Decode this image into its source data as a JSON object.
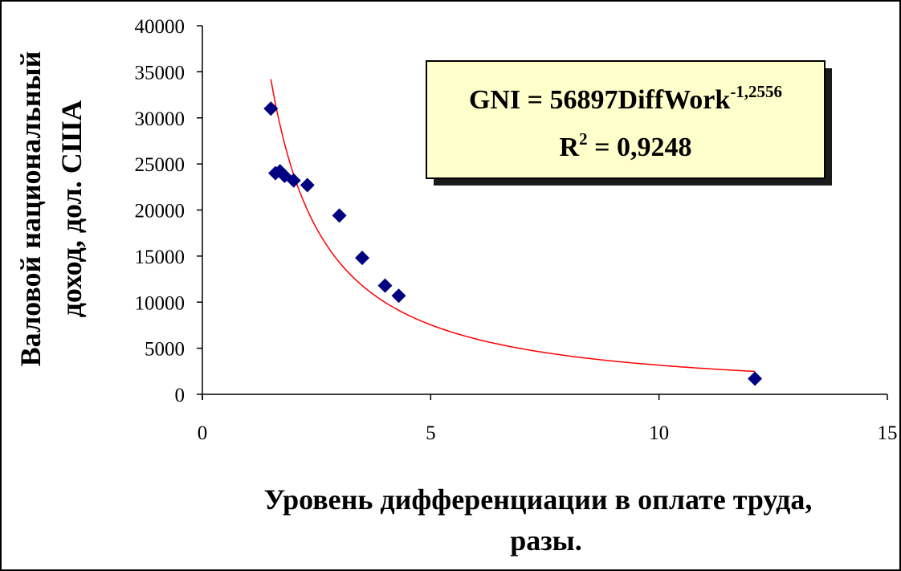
{
  "chart_data": {
    "type": "scatter",
    "xlabel_lines": [
      "Уровень дифференциации в оплате труда,",
      "разы."
    ],
    "ylabel_lines": [
      "Валовой национальный",
      "доход, дол. США"
    ],
    "xlim": [
      0,
      15
    ],
    "ylim": [
      0,
      40000
    ],
    "x_ticks": [
      0,
      5,
      10,
      15
    ],
    "y_ticks": [
      0,
      5000,
      10000,
      15000,
      20000,
      25000,
      30000,
      35000,
      40000
    ],
    "grid": false,
    "legend": "none",
    "series": [
      {
        "marker": "diamond",
        "color": "#000080",
        "points": [
          {
            "x": 1.5,
            "y": 31000
          },
          {
            "x": 1.6,
            "y": 24000
          },
          {
            "x": 1.7,
            "y": 24200
          },
          {
            "x": 1.8,
            "y": 23700
          },
          {
            "x": 2.0,
            "y": 23200
          },
          {
            "x": 2.3,
            "y": 22700
          },
          {
            "x": 3.0,
            "y": 19400
          },
          {
            "x": 3.5,
            "y": 14800
          },
          {
            "x": 4.0,
            "y": 11800
          },
          {
            "x": 4.3,
            "y": 10700
          },
          {
            "x": 12.1,
            "y": 1700
          }
        ]
      }
    ],
    "trendline": {
      "kind": "power",
      "coefficient": 56897,
      "exponent": -1.2556,
      "x_range": [
        1.5,
        12.1
      ],
      "color": "#ff0000"
    },
    "annotation": {
      "line1_main": "GNI = 56897DiffWork",
      "line1_sup": "-1,2556",
      "line2_main": "R",
      "line2_sup": "2",
      "line2_rest": " = 0,9248",
      "background": "#ffffcc"
    }
  }
}
